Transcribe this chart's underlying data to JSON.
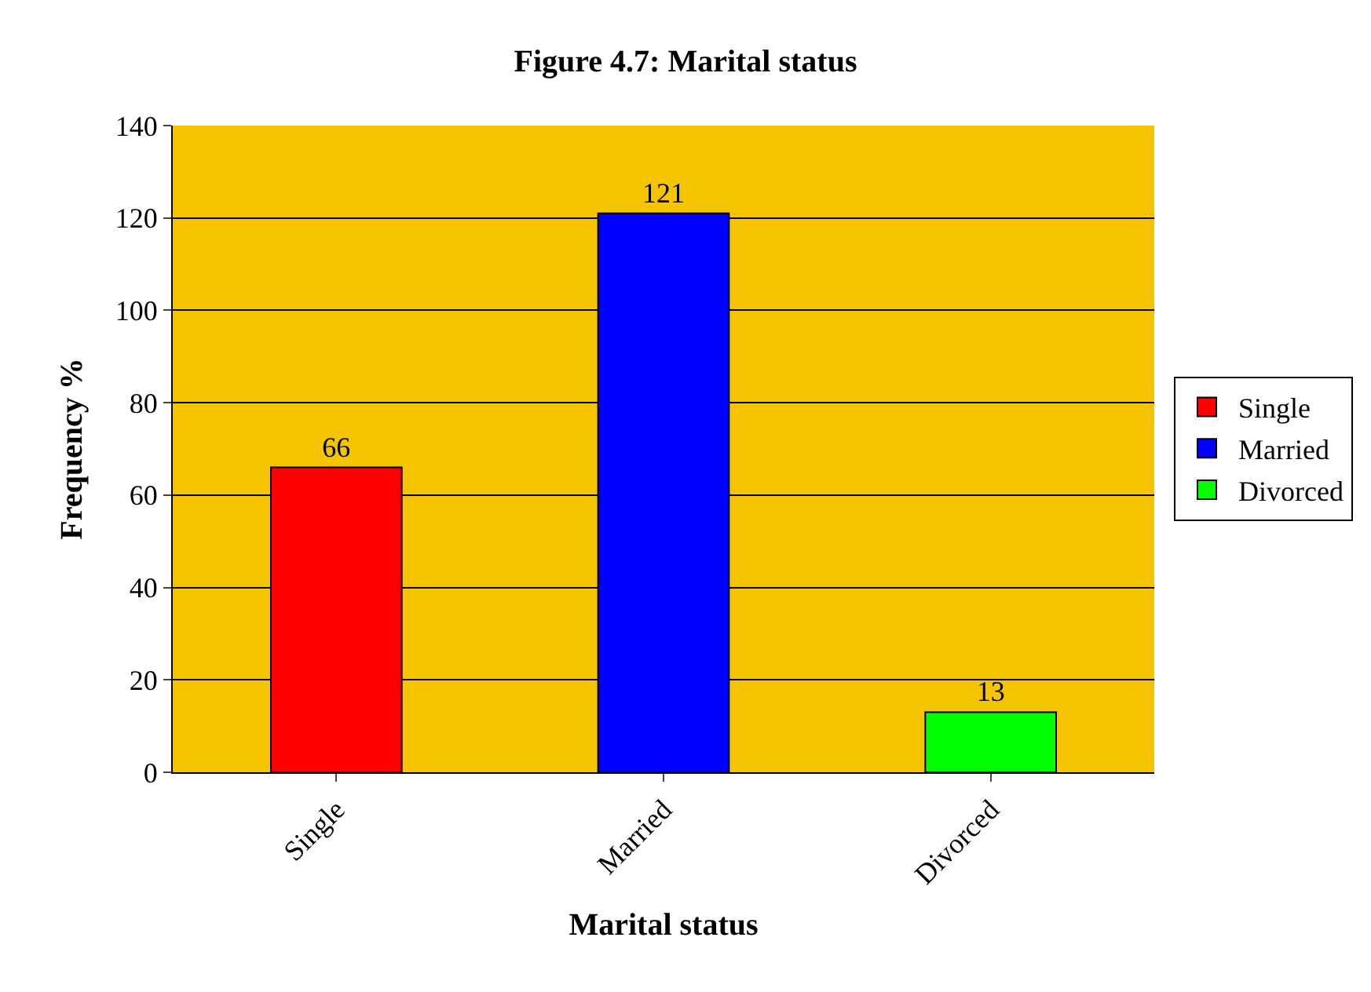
{
  "chart_data": {
    "type": "bar",
    "title": "Figure 4.7: Marital status",
    "xlabel": "Marital status",
    "ylabel": "Frequency %",
    "categories": [
      "Single",
      "Married",
      "Divorced"
    ],
    "series": [
      {
        "name": "Single",
        "color": "#ff0000",
        "values": [
          66,
          null,
          null
        ]
      },
      {
        "name": "Married",
        "color": "#0000ff",
        "values": [
          null,
          121,
          null
        ]
      },
      {
        "name": "Divorced",
        "color": "#00ff00",
        "values": [
          null,
          null,
          13
        ]
      }
    ],
    "data_labels": true,
    "ylim": [
      0,
      140
    ],
    "yticks": [
      0,
      20,
      40,
      60,
      80,
      100,
      120,
      140
    ],
    "grid": "y",
    "legend": "right"
  }
}
